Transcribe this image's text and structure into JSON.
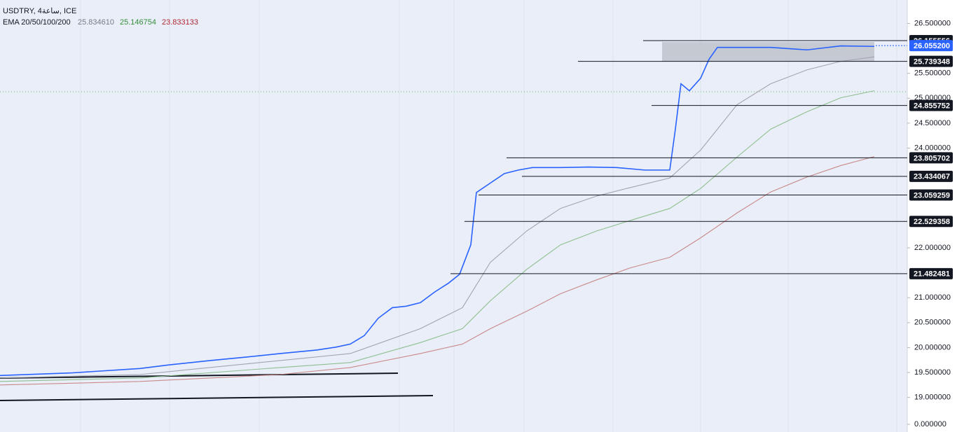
{
  "chart_data": {
    "type": "line",
    "title": "USDTRY, 4ساعة, ICE",
    "subtitle": "EMA 20/50/100/200",
    "ema_labels": [
      {
        "value": 25.83461,
        "label": "25.834610",
        "color": "#787b86"
      },
      {
        "value": 25.146754,
        "label": "25.146754",
        "color": "#388e3c"
      },
      {
        "value": 23.833133,
        "label": "23.833133",
        "color": "#b22833"
      }
    ],
    "xlim": [
      0,
      323
    ],
    "ylim": [
      18.7,
      26.9
    ],
    "yticks": [
      {
        "value": 26.5,
        "label": "26.500000"
      },
      {
        "value": 25.5,
        "label": "25.500000"
      },
      {
        "value": 25,
        "label": "25.000000"
      },
      {
        "value": 24.5,
        "label": "24.500000"
      },
      {
        "value": 24,
        "label": "24.000000"
      },
      {
        "value": 22,
        "label": "22.000000"
      },
      {
        "value": 21,
        "label": "21.000000"
      },
      {
        "value": 20.5,
        "label": "20.500000"
      },
      {
        "value": 20,
        "label": "20.000000"
      },
      {
        "value": 19.5,
        "label": "19.500000"
      },
      {
        "value": 19,
        "label": "19.000000"
      }
    ],
    "lower_pane_yticks": [
      {
        "value": 0,
        "label": "0.000000"
      }
    ],
    "series": [
      {
        "name": "USDTRY",
        "color": "#2962ff",
        "x": [
          0,
          25,
          50,
          60,
          75,
          88,
          100,
          113,
          120,
          125,
          130,
          135,
          140,
          145,
          150,
          155,
          160,
          164,
          168,
          170,
          175,
          180,
          185,
          190,
          200,
          210,
          220,
          230,
          239,
          241,
          243,
          246,
          250,
          253,
          256,
          263,
          275,
          288,
          300,
          312
        ],
        "values": [
          19.44,
          19.49,
          19.58,
          19.65,
          19.74,
          19.81,
          19.88,
          19.95,
          20.01,
          20.07,
          20.24,
          20.59,
          20.8,
          20.83,
          20.9,
          21.11,
          21.29,
          21.47,
          22.06,
          23.11,
          23.3,
          23.49,
          23.56,
          23.61,
          23.61,
          23.62,
          23.61,
          23.56,
          23.56,
          24.38,
          25.29,
          25.15,
          25.4,
          25.78,
          26.02,
          26.02,
          26.02,
          25.97,
          26.05,
          26.04
        ]
      },
      {
        "name": "EMA 20",
        "color": "#a3a5ad",
        "x": [
          0,
          50,
          100,
          125,
          150,
          165,
          175,
          188,
          200,
          213,
          225,
          239,
          250,
          263,
          275,
          288,
          300,
          312
        ],
        "values": [
          19.39,
          19.46,
          19.74,
          19.88,
          20.38,
          20.8,
          21.71,
          22.34,
          22.79,
          23.04,
          23.21,
          23.4,
          23.96,
          24.87,
          25.29,
          25.57,
          25.74,
          25.83
        ]
      },
      {
        "name": "EMA 50",
        "color": "#8fbf8f",
        "x": [
          0,
          50,
          100,
          125,
          150,
          165,
          175,
          188,
          200,
          213,
          225,
          239,
          250,
          263,
          275,
          288,
          300,
          312
        ],
        "values": [
          19.32,
          19.39,
          19.6,
          19.7,
          20.1,
          20.38,
          20.94,
          21.57,
          22.06,
          22.34,
          22.55,
          22.79,
          23.19,
          23.82,
          24.38,
          24.73,
          25.01,
          25.15
        ]
      },
      {
        "name": "EMA 100",
        "color": "#c98a8a",
        "x": [
          0,
          50,
          100,
          125,
          150,
          165,
          175,
          188,
          200,
          213,
          225,
          239,
          250,
          263,
          275,
          288,
          300,
          312
        ],
        "values": [
          19.25,
          19.32,
          19.46,
          19.6,
          19.88,
          20.07,
          20.38,
          20.73,
          21.08,
          21.36,
          21.6,
          21.81,
          22.2,
          22.7,
          23.12,
          23.42,
          23.65,
          23.83
        ]
      }
    ],
    "levels": [
      26.155556,
      25.739348,
      24.855752,
      23.805702,
      23.434067,
      23.059259,
      22.529358,
      21.482481
    ],
    "last_price": {
      "value": 26.0552,
      "label": "26.055200",
      "color": "#2962ff"
    }
  }
}
